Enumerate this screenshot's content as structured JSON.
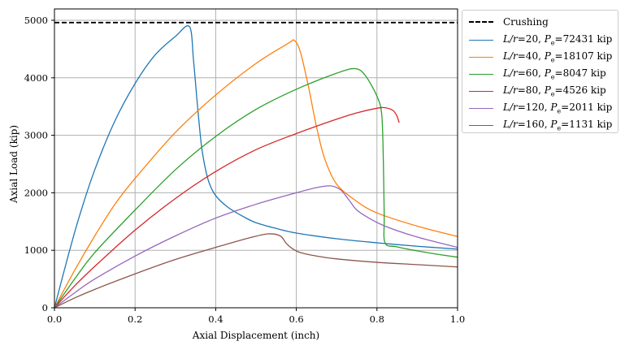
{
  "chart_data": {
    "type": "line",
    "title": "",
    "xlabel": "Axial Displacement (inch)",
    "ylabel": "Axial Load (kip)",
    "xlim": [
      0.0,
      1.0
    ],
    "ylim": [
      0,
      5200
    ],
    "xticks": [
      0.0,
      0.2,
      0.4,
      0.6,
      0.8,
      1.0
    ],
    "xtick_labels": [
      "0.0",
      "0.2",
      "0.4",
      "0.6",
      "0.8",
      "1.0"
    ],
    "yticks": [
      0,
      1000,
      2000,
      3000,
      4000,
      5000
    ],
    "ytick_labels": [
      "0",
      "1000",
      "2000",
      "3000",
      "4000",
      "5000"
    ],
    "grid": true,
    "legend_position": "outside-top-right",
    "reference_lines": [
      {
        "name": "Crushing",
        "label": "Crushing",
        "y": 4960,
        "style": "dashed",
        "color": "#000000"
      }
    ],
    "series": [
      {
        "name": "L/r=20",
        "label_lr": "L/r",
        "lr": "20",
        "pe": "72431",
        "unit": "kip",
        "color": "#1f77b4",
        "x": [
          0.0,
          0.03,
          0.06,
          0.1,
          0.15,
          0.2,
          0.25,
          0.3,
          0.335,
          0.345,
          0.355,
          0.365,
          0.375,
          0.385,
          0.4,
          0.43,
          0.47,
          0.5,
          0.55,
          0.6,
          0.7,
          0.8,
          0.9,
          1.0
        ],
        "y": [
          0,
          800,
          1550,
          2400,
          3250,
          3900,
          4400,
          4720,
          4890,
          4300,
          3500,
          2800,
          2400,
          2150,
          1950,
          1750,
          1580,
          1480,
          1380,
          1300,
          1200,
          1130,
          1070,
          1020
        ]
      },
      {
        "name": "L/r=40",
        "label_lr": "L/r",
        "lr": "40",
        "pe": "18107",
        "unit": "kip",
        "color": "#ff7f0e",
        "x": [
          0.0,
          0.05,
          0.1,
          0.15,
          0.2,
          0.3,
          0.4,
          0.5,
          0.58,
          0.595,
          0.61,
          0.63,
          0.65,
          0.67,
          0.7,
          0.75,
          0.8,
          0.9,
          1.0
        ],
        "y": [
          0,
          650,
          1250,
          1800,
          2250,
          3050,
          3700,
          4250,
          4600,
          4650,
          4450,
          3850,
          3150,
          2600,
          2150,
          1850,
          1650,
          1420,
          1240
        ]
      },
      {
        "name": "L/r=60",
        "label_lr": "L/r",
        "lr": "60",
        "pe": "8047",
        "unit": "kip",
        "color": "#2ca02c",
        "x": [
          0.0,
          0.05,
          0.1,
          0.2,
          0.3,
          0.4,
          0.5,
          0.6,
          0.7,
          0.745,
          0.77,
          0.8,
          0.812,
          0.816,
          0.818,
          0.82,
          0.85,
          0.9,
          0.95,
          1.0
        ],
        "y": [
          0,
          500,
          960,
          1700,
          2400,
          2980,
          3450,
          3800,
          4080,
          4160,
          4050,
          3680,
          3350,
          2500,
          1600,
          1130,
          1060,
          990,
          930,
          880
        ]
      },
      {
        "name": "L/r=80",
        "label_lr": "L/r",
        "lr": "80",
        "pe": "4526",
        "unit": "kip",
        "color": "#d62728",
        "x": [
          0.0,
          0.05,
          0.1,
          0.2,
          0.3,
          0.4,
          0.5,
          0.6,
          0.7,
          0.75,
          0.8,
          0.82,
          0.84,
          0.85,
          0.855
        ],
        "y": [
          0,
          380,
          720,
          1350,
          1900,
          2370,
          2750,
          3030,
          3280,
          3390,
          3470,
          3480,
          3430,
          3330,
          3220
        ]
      },
      {
        "name": "L/r=120",
        "label_lr": "L/r",
        "lr": "120",
        "pe": "2011",
        "unit": "kip",
        "color": "#9467bd",
        "x": [
          0.0,
          0.05,
          0.1,
          0.2,
          0.3,
          0.4,
          0.5,
          0.6,
          0.65,
          0.685,
          0.71,
          0.73,
          0.75,
          0.78,
          0.82,
          0.9,
          1.0
        ],
        "y": [
          0,
          260,
          500,
          900,
          1250,
          1560,
          1800,
          2000,
          2090,
          2120,
          2050,
          1880,
          1700,
          1560,
          1420,
          1230,
          1050
        ]
      },
      {
        "name": "L/r=160",
        "label_lr": "L/r",
        "lr": "160",
        "pe": "1131",
        "unit": "kip",
        "color": "#8c564b",
        "x": [
          0.0,
          0.05,
          0.1,
          0.2,
          0.3,
          0.4,
          0.48,
          0.53,
          0.56,
          0.575,
          0.59,
          0.61,
          0.65,
          0.7,
          0.8,
          0.9,
          1.0
        ],
        "y": [
          0,
          170,
          320,
          590,
          840,
          1050,
          1210,
          1285,
          1250,
          1120,
          1030,
          960,
          900,
          850,
          790,
          750,
          710
        ]
      }
    ],
    "legend": {
      "pe_symbol": "P",
      "pe_subscript": "e"
    }
  }
}
